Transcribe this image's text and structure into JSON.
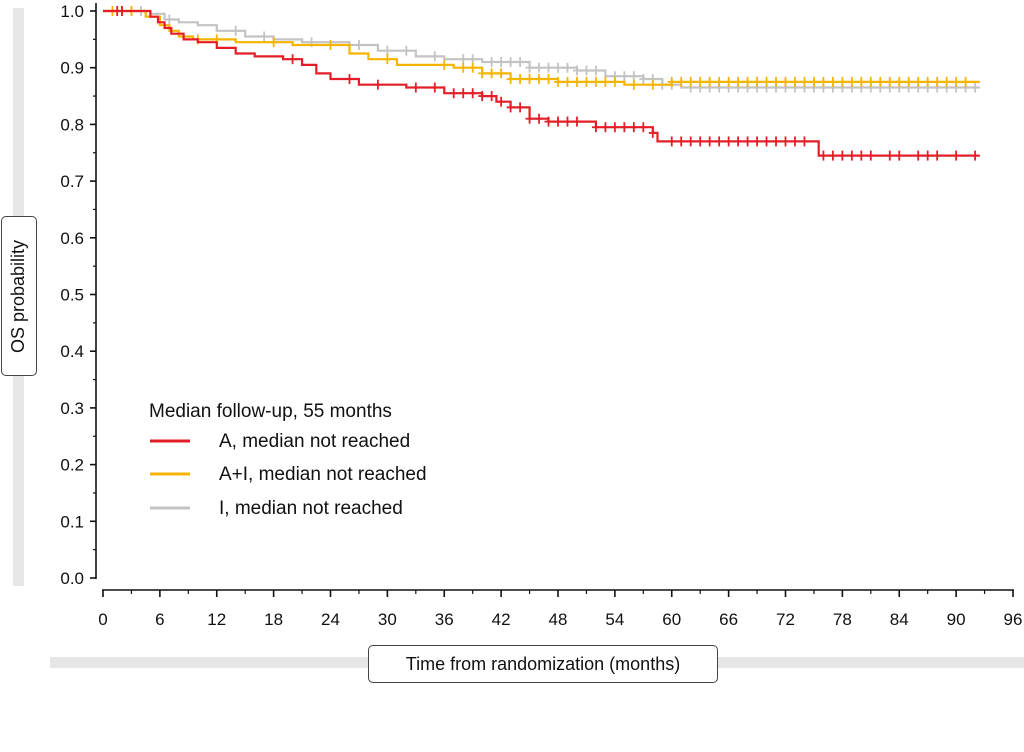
{
  "chart_data": {
    "type": "line",
    "xlabel": "Time from randomization (months)",
    "ylabel": "OS probability",
    "xlim": [
      0,
      96
    ],
    "ylim": [
      0,
      1.0
    ],
    "x_ticks": [
      "0",
      "6",
      "12",
      "18",
      "24",
      "30",
      "36",
      "42",
      "48",
      "54",
      "60",
      "66",
      "72",
      "78",
      "84",
      "90",
      "96"
    ],
    "y_ticks": [
      "0.0",
      "0.1",
      "0.2",
      "0.3",
      "0.4",
      "0.5",
      "0.6",
      "0.7",
      "0.8",
      "0.9",
      "1.0"
    ],
    "legend_title": "Median follow-up, 55 months",
    "legend_placement": "lower-left",
    "grid": false,
    "series": [
      {
        "name": "A, median not reached",
        "color": "#e41e26",
        "steps": [
          [
            0,
            1.0
          ],
          [
            5,
            0.99
          ],
          [
            5.8,
            0.98
          ],
          [
            6.5,
            0.97
          ],
          [
            7.2,
            0.96
          ],
          [
            8.5,
            0.95
          ],
          [
            10,
            0.945
          ],
          [
            12,
            0.935
          ],
          [
            14,
            0.925
          ],
          [
            16,
            0.92
          ],
          [
            19,
            0.915
          ],
          [
            21,
            0.905
          ],
          [
            22.5,
            0.89
          ],
          [
            24,
            0.88
          ],
          [
            27,
            0.87
          ],
          [
            32,
            0.865
          ],
          [
            36,
            0.855
          ],
          [
            40,
            0.85
          ],
          [
            41.5,
            0.84
          ],
          [
            43,
            0.83
          ],
          [
            45,
            0.81
          ],
          [
            47,
            0.805
          ],
          [
            52,
            0.795
          ],
          [
            58,
            0.785
          ],
          [
            58.5,
            0.77
          ],
          [
            75,
            0.77
          ],
          [
            75.5,
            0.745
          ],
          [
            92.5,
            0.745
          ]
        ],
        "censor_x": [
          1.5,
          2,
          20,
          26,
          29,
          33,
          35,
          37,
          38,
          39,
          40,
          41,
          42,
          43,
          44,
          45,
          46,
          47,
          48,
          49,
          50,
          52,
          53,
          54,
          55,
          56,
          57,
          58,
          60,
          61,
          62,
          63,
          64,
          65,
          66,
          67,
          68,
          69,
          70,
          71,
          72,
          73,
          74,
          76,
          77,
          78,
          79,
          80,
          81,
          83,
          84,
          86,
          87,
          88,
          90,
          92
        ]
      },
      {
        "name": "A+I, median not reached",
        "color": "#f5b400",
        "steps": [
          [
            0,
            1.0
          ],
          [
            4.5,
            0.99
          ],
          [
            6,
            0.975
          ],
          [
            7,
            0.965
          ],
          [
            8,
            0.955
          ],
          [
            9.5,
            0.95
          ],
          [
            14,
            0.945
          ],
          [
            20,
            0.94
          ],
          [
            26,
            0.925
          ],
          [
            28,
            0.915
          ],
          [
            31,
            0.905
          ],
          [
            37,
            0.9
          ],
          [
            40,
            0.89
          ],
          [
            43,
            0.88
          ],
          [
            48,
            0.875
          ],
          [
            55,
            0.87
          ],
          [
            60,
            0.875
          ],
          [
            92.5,
            0.875
          ]
        ],
        "censor_x": [
          1,
          2,
          3,
          10,
          12,
          18,
          24,
          30,
          36,
          38,
          39,
          40,
          41,
          42,
          43,
          44,
          45,
          46,
          47,
          48,
          49,
          50,
          51,
          52,
          53,
          54,
          56,
          58,
          60,
          61,
          62,
          63,
          64,
          65,
          66,
          67,
          68,
          69,
          70,
          71,
          72,
          73,
          74,
          75,
          76,
          77,
          78,
          79,
          80,
          81,
          82,
          83,
          84,
          85,
          86,
          87,
          88,
          89,
          90,
          91
        ]
      },
      {
        "name": "I, median not reached",
        "color": "#c3c3c3",
        "steps": [
          [
            0,
            1.0
          ],
          [
            5,
            0.995
          ],
          [
            6.5,
            0.985
          ],
          [
            8,
            0.98
          ],
          [
            10,
            0.975
          ],
          [
            12,
            0.965
          ],
          [
            15,
            0.955
          ],
          [
            18,
            0.95
          ],
          [
            21,
            0.945
          ],
          [
            26,
            0.94
          ],
          [
            29,
            0.93
          ],
          [
            33,
            0.92
          ],
          [
            36,
            0.915
          ],
          [
            40,
            0.91
          ],
          [
            45,
            0.9
          ],
          [
            50,
            0.895
          ],
          [
            53,
            0.885
          ],
          [
            57,
            0.88
          ],
          [
            59,
            0.87
          ],
          [
            61,
            0.865
          ],
          [
            92.5,
            0.865
          ]
        ],
        "censor_x": [
          2,
          3,
          4,
          7,
          14,
          17,
          22,
          27,
          30,
          32,
          35,
          38,
          39,
          41,
          42,
          43,
          44,
          45,
          46,
          47,
          48,
          49,
          50,
          51,
          52,
          54,
          55,
          56,
          57,
          58,
          59,
          60,
          62,
          63,
          64,
          65,
          66,
          67,
          68,
          69,
          70,
          71,
          72,
          73,
          74,
          75,
          76,
          77,
          78,
          79,
          80,
          81,
          82,
          83,
          84,
          85,
          86,
          87,
          88,
          89,
          90,
          91,
          92
        ]
      }
    ]
  }
}
